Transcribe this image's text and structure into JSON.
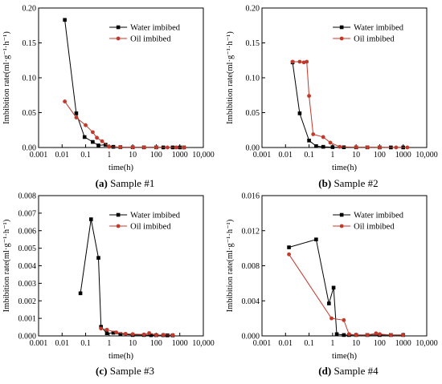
{
  "chart_data": [
    {
      "type": "line",
      "caption_letter": "(a)",
      "caption_text": " Sample #1",
      "xlabel": "time(h)",
      "ylabel": "Imbibition rate(ml·g⁻¹·h⁻¹)",
      "xscale": "log",
      "xlim": [
        0.001,
        10000
      ],
      "x_ticks": [
        "0.001",
        "0.01",
        "0.1",
        "1",
        "10",
        "100",
        "1000",
        "10,000"
      ],
      "ylim": [
        0,
        0.2
      ],
      "y_ticks": [
        "0.00",
        "0.05",
        "0.10",
        "0.15",
        "0.20"
      ],
      "legend_position": "top-right",
      "series": [
        {
          "name": "Water imbibed",
          "color": "#000000",
          "marker": "square",
          "x": [
            0.013,
            0.04,
            0.09,
            0.2,
            0.35,
            0.7,
            1.5,
            3,
            10,
            30,
            100,
            200,
            500,
            1000,
            1500
          ],
          "y": [
            0.183,
            0.049,
            0.015,
            0.008,
            0.003,
            0.004,
            0.001,
            0.0005,
            0.0003,
            0.0002,
            0.0002,
            0.0001,
            0.0001,
            0.0001,
            0.0001
          ]
        },
        {
          "name": "Oil imbibed",
          "color": "#c0392b",
          "marker": "circle",
          "x": [
            0.013,
            0.04,
            0.1,
            0.2,
            0.3,
            0.5,
            1,
            3,
            10,
            30,
            100,
            300,
            700,
            1500
          ],
          "y": [
            0.066,
            0.043,
            0.032,
            0.022,
            0.014,
            0.009,
            0.001,
            0.0005,
            0.0003,
            0.0002,
            0.0002,
            0.0001,
            0.0001,
            0.0001
          ]
        }
      ]
    },
    {
      "type": "line",
      "caption_letter": "(b)",
      "caption_text": " Sample #2",
      "xlabel": "time(h)",
      "ylabel": "Imbibition rate(ml·g⁻¹·h⁻¹)",
      "xscale": "log",
      "xlim": [
        0.001,
        10000
      ],
      "x_ticks": [
        "0.001",
        "0.01",
        "0.1",
        "1",
        "10",
        "100",
        "1000",
        "10,000"
      ],
      "ylim": [
        0,
        0.2
      ],
      "y_ticks": [
        "0.00",
        "0.05",
        "0.10",
        "0.15",
        "0.20"
      ],
      "legend_position": "top-right",
      "series": [
        {
          "name": "Water imbibed",
          "color": "#000000",
          "marker": "square",
          "x": [
            0.02,
            0.04,
            0.1,
            0.2,
            0.4,
            1,
            3,
            10,
            30,
            100,
            300,
            1000
          ],
          "y": [
            0.122,
            0.049,
            0.01,
            0.002,
            0.001,
            0.0005,
            0.0003,
            0.0002,
            0.0002,
            0.0001,
            0.0001,
            0.0001
          ]
        },
        {
          "name": "Oil imbibed",
          "color": "#c0392b",
          "marker": "circle",
          "x": [
            0.02,
            0.04,
            0.06,
            0.08,
            0.1,
            0.15,
            0.4,
            0.8,
            2,
            10,
            30,
            100,
            500,
            1500
          ],
          "y": [
            0.123,
            0.123,
            0.122,
            0.123,
            0.074,
            0.019,
            0.015,
            0.007,
            0.001,
            0.0005,
            0.0003,
            0.0002,
            0.0001,
            0.0001
          ]
        }
      ]
    },
    {
      "type": "line",
      "caption_letter": "(c)",
      "caption_text": " Sample #3",
      "xlabel": "time(h)",
      "ylabel": "Imbibition rate(ml·g⁻¹·h⁻¹)",
      "xscale": "log",
      "xlim": [
        0.001,
        10000
      ],
      "x_ticks": [
        "0.001",
        "0.01",
        "0.1",
        "1",
        "10",
        "100",
        "1000",
        "10,000"
      ],
      "ylim": [
        0,
        0.008
      ],
      "y_ticks": [
        "0.000",
        "0.001",
        "0.002",
        "0.003",
        "0.004",
        "0.005",
        "0.006",
        "0.007",
        "0.008"
      ],
      "legend_position": "top-right",
      "series": [
        {
          "name": "Water imbibed",
          "color": "#000000",
          "marker": "square",
          "x": [
            0.06,
            0.17,
            0.35,
            0.45,
            0.8,
            1.5,
            3,
            10,
            30,
            60,
            100,
            200,
            300,
            500
          ],
          "y": [
            0.00243,
            0.00665,
            0.00445,
            0.00052,
            0.00015,
            0.00018,
            0.0001,
            5e-05,
            5e-05,
            4e-05,
            4e-05,
            4e-05,
            3e-05,
            3e-05
          ]
        },
        {
          "name": "Oil imbibed",
          "color": "#c0392b",
          "marker": "circle",
          "x": [
            0.45,
            0.8,
            2,
            5,
            10,
            30,
            50,
            100,
            200,
            500
          ],
          "y": [
            0.00042,
            0.00035,
            0.0002,
            0.00012,
            0.0001,
            8e-05,
            0.00016,
            5e-05,
            6e-05,
            5e-05
          ]
        }
      ]
    },
    {
      "type": "line",
      "caption_letter": "(d)",
      "caption_text": " Sample #4",
      "xlabel": "time(h)",
      "ylabel": "Imbibition rate(ml·g⁻¹·h⁻¹)",
      "xscale": "log",
      "xlim": [
        0.001,
        10000
      ],
      "x_ticks": [
        "0.001",
        "0.01",
        "0.1",
        "1",
        "10",
        "100",
        "1000",
        "10,000"
      ],
      "ylim": [
        0,
        0.016
      ],
      "y_ticks": [
        "0.000",
        "0.004",
        "0.008",
        "0.012",
        "0.016"
      ],
      "legend_position": "top-right",
      "series": [
        {
          "name": "Water imbibed",
          "color": "#000000",
          "marker": "square",
          "x": [
            0.014,
            0.2,
            0.7,
            1.1,
            1.5,
            3,
            5,
            10,
            30,
            100,
            300,
            1000
          ],
          "y": [
            0.0101,
            0.011,
            0.0037,
            0.0055,
            0.0002,
            0.0001,
            0.0001,
            0.0001,
            0.0001,
            0.0001,
            0.0001,
            0.0001
          ]
        },
        {
          "name": "Oil imbibed",
          "color": "#c0392b",
          "marker": "circle",
          "x": [
            0.014,
            0.9,
            3,
            5,
            10,
            30,
            70,
            100,
            300,
            1000
          ],
          "y": [
            0.0093,
            0.002,
            0.0018,
            0.0002,
            0.0001,
            0.0001,
            0.0003,
            0.0002,
            0.0001,
            0.0001
          ]
        }
      ]
    }
  ]
}
